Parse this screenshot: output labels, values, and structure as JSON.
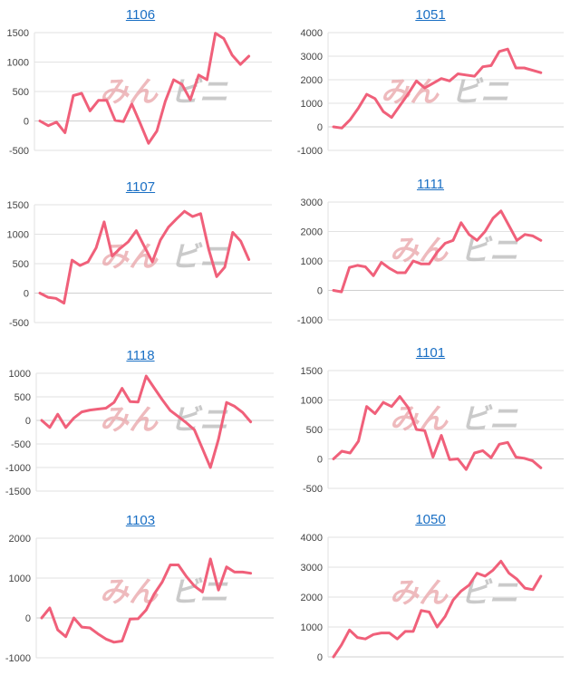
{
  "watermark": {
    "left": "みん",
    "right": "ビニ"
  },
  "colors": {
    "line": "#f0607a",
    "title": "#1a6fc4",
    "grid": "#e2e2e2"
  },
  "chart_data": [
    {
      "type": "line",
      "title": "1106",
      "ylim": [
        -500,
        1500
      ],
      "yticks": [
        1500,
        1000,
        500,
        0,
        -500
      ],
      "values": [
        0,
        -80,
        -20,
        -200,
        430,
        470,
        170,
        350,
        350,
        10,
        -10,
        290,
        -40,
        -380,
        -170,
        330,
        700,
        620,
        360,
        780,
        700,
        1490,
        1400,
        1120,
        960,
        1100
      ]
    },
    {
      "type": "line",
      "title": "1051",
      "ylim": [
        -1000,
        4000
      ],
      "yticks": [
        4000,
        3000,
        2000,
        1000,
        0,
        -1000
      ],
      "values": [
        0,
        -50,
        300,
        800,
        1380,
        1200,
        650,
        400,
        900,
        1400,
        1950,
        1650,
        1850,
        2050,
        1950,
        2250,
        2200,
        2150,
        2550,
        2600,
        3200,
        3300,
        2500,
        2500,
        2400,
        2300
      ]
    },
    {
      "type": "line",
      "title": "1107",
      "ylim": [
        -500,
        1500
      ],
      "yticks": [
        1500,
        1000,
        500,
        0,
        -500
      ],
      "values": [
        0,
        -70,
        -90,
        -170,
        560,
        470,
        530,
        770,
        1210,
        630,
        760,
        870,
        1060,
        790,
        530,
        900,
        1120,
        1260,
        1390,
        1300,
        1350,
        750,
        280,
        440,
        1030,
        880,
        570
      ]
    },
    {
      "type": "line",
      "title": "1111",
      "ylim": [
        -1000,
        3000
      ],
      "yticks": [
        3000,
        2000,
        1000,
        0,
        -1000
      ],
      "values": [
        0,
        -50,
        780,
        850,
        800,
        500,
        950,
        750,
        600,
        600,
        1000,
        900,
        900,
        1300,
        1600,
        1700,
        2300,
        1900,
        1700,
        2000,
        2450,
        2700,
        2200,
        1700,
        1900,
        1850,
        1700
      ]
    },
    {
      "type": "line",
      "title": "1118",
      "ylim": [
        -1500,
        1000
      ],
      "yticks": [
        1000,
        500,
        0,
        -500,
        -1000,
        -1500
      ],
      "values": [
        0,
        -150,
        130,
        -150,
        50,
        180,
        220,
        240,
        260,
        380,
        680,
        400,
        390,
        940,
        690,
        440,
        210,
        80,
        -50,
        -200,
        -600,
        -1000,
        -400,
        380,
        300,
        170,
        -30
      ]
    },
    {
      "type": "line",
      "title": "1101",
      "ylim": [
        -500,
        1500
      ],
      "yticks": [
        1500,
        1000,
        500,
        0,
        -500
      ],
      "values": [
        0,
        130,
        100,
        300,
        890,
        770,
        960,
        890,
        1060,
        870,
        500,
        480,
        30,
        400,
        -10,
        0,
        -180,
        100,
        140,
        20,
        250,
        280,
        30,
        10,
        -30,
        -150
      ]
    },
    {
      "type": "line",
      "title": "1103",
      "ylim": [
        -1000,
        2000
      ],
      "yticks": [
        2000,
        1000,
        0,
        -1000
      ],
      "values": [
        0,
        250,
        -300,
        -470,
        0,
        -230,
        -250,
        -400,
        -530,
        -610,
        -580,
        -30,
        -20,
        200,
        600,
        900,
        1330,
        1330,
        1040,
        800,
        650,
        1480,
        700,
        1280,
        1150,
        1150,
        1120
      ]
    },
    {
      "type": "line",
      "title": "1050",
      "ylim": [
        0,
        4000
      ],
      "yticks": [
        4000,
        3000,
        2000,
        1000,
        0
      ],
      "values": [
        0,
        400,
        900,
        650,
        600,
        750,
        800,
        800,
        600,
        850,
        850,
        1550,
        1500,
        1000,
        1350,
        1900,
        2200,
        2400,
        2800,
        2700,
        2900,
        3200,
        2800,
        2600,
        2300,
        2250,
        2700
      ]
    }
  ]
}
